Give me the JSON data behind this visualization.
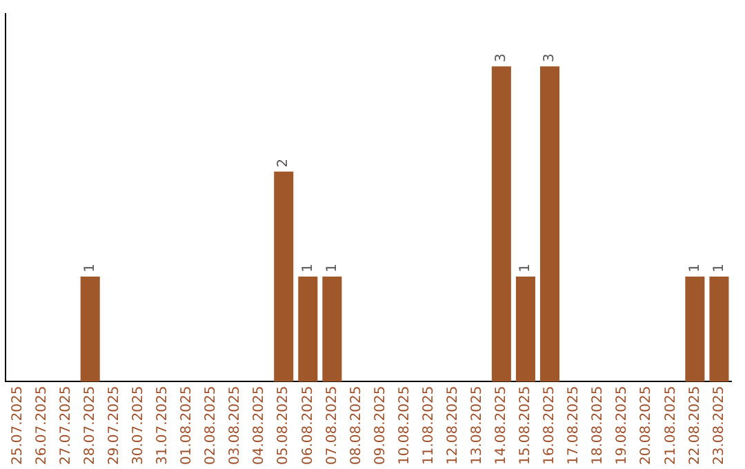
{
  "chart_data": {
    "type": "bar",
    "categories": [
      "25.07.2025",
      "26.07.2025",
      "27.07.2025",
      "28.07.2025",
      "29.07.2025",
      "30.07.2025",
      "31.07.2025",
      "01.08.2025",
      "02.08.2025",
      "03.08.2025",
      "04.08.2025",
      "05.08.2025",
      "06.08.2025",
      "07.08.2025",
      "08.08.2025",
      "09.08.2025",
      "10.08.2025",
      "11.08.2025",
      "12.08.2025",
      "13.08.2025",
      "14.08.2025",
      "15.08.2025",
      "16.08.2025",
      "17.08.2025",
      "18.08.2025",
      "19.08.2025",
      "20.08.2025",
      "21.08.2025",
      "22.08.2025",
      "23.08.2025"
    ],
    "values": [
      0,
      0,
      0,
      1,
      0,
      0,
      0,
      0,
      0,
      0,
      0,
      2,
      1,
      1,
      0,
      0,
      0,
      0,
      0,
      0,
      3,
      1,
      3,
      0,
      0,
      0,
      0,
      0,
      1,
      1
    ],
    "value_labels": [
      null,
      null,
      null,
      "1",
      null,
      null,
      null,
      null,
      null,
      null,
      null,
      "2",
      "1",
      "1",
      null,
      null,
      null,
      null,
      null,
      null,
      "3",
      "1",
      "3",
      null,
      null,
      null,
      null,
      null,
      "1",
      "1"
    ],
    "color": "#a0582a",
    "grid": false,
    "legend": false,
    "tick_labels": "x"
  }
}
